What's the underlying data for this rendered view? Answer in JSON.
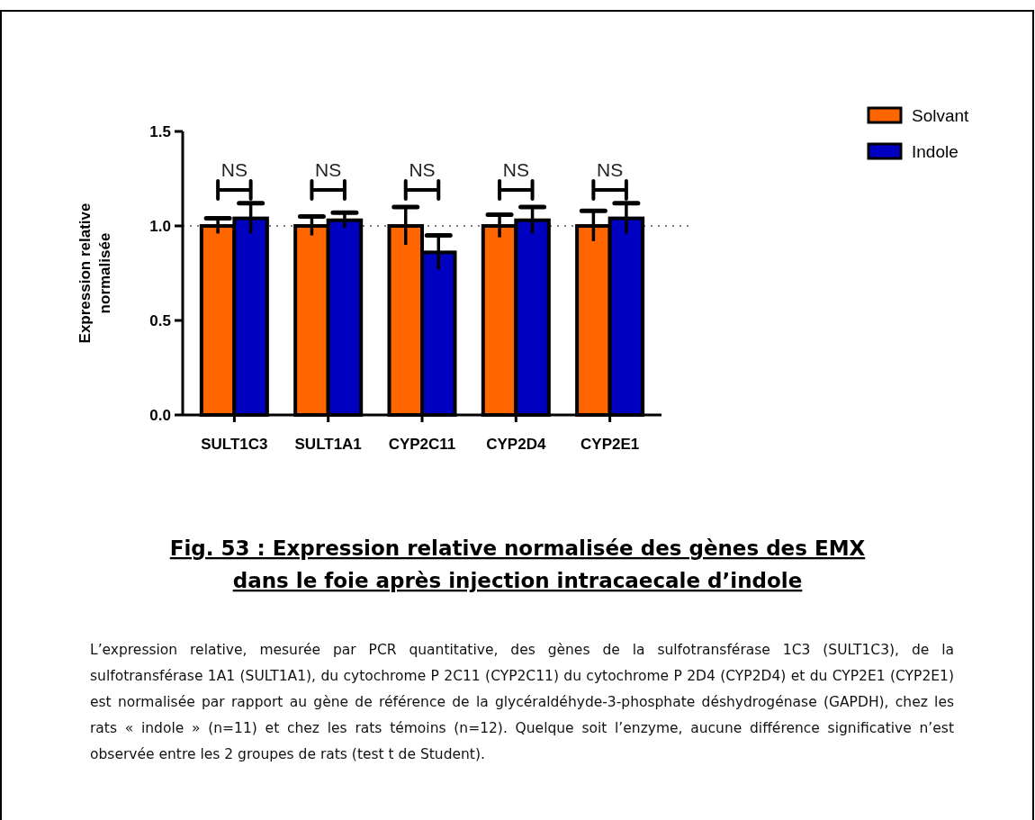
{
  "chart_data": {
    "type": "bar",
    "title": "Fig. 53 : Expression relative normalisée des gènes des EMX\ndans le foie après injection intracaecale d’indole",
    "ylabel": "Expression relative\nnormalisée",
    "categories": [
      "SULT1C3",
      "SULT1A1",
      "CYP2C11",
      "CYP2D4",
      "CYP2E1"
    ],
    "series": [
      {
        "name": "Solvant",
        "color": "#ff6600",
        "values": [
          1.0,
          1.0,
          1.0,
          1.0,
          1.0
        ],
        "errors": [
          0.04,
          0.05,
          0.1,
          0.06,
          0.08
        ]
      },
      {
        "name": "Indole",
        "color": "#0000c0",
        "values": [
          1.04,
          1.03,
          0.86,
          1.03,
          1.04
        ],
        "errors": [
          0.08,
          0.04,
          0.09,
          0.07,
          0.08
        ]
      }
    ],
    "ylim": [
      0,
      1.5
    ],
    "yticks": [
      {
        "value": 0,
        "label": "0.0"
      },
      {
        "value": 0.5,
        "label": "0.5"
      },
      {
        "value": 1,
        "label": "1.0"
      },
      {
        "value": 1.5,
        "label": "1.5"
      }
    ],
    "ref_lines": [
      {
        "axis": "y",
        "value": 1,
        "line_style": "dotted",
        "color": "#555555"
      }
    ],
    "legend": "top right",
    "annotations": [
      "NS",
      "NS",
      "NS",
      "NS",
      "NS",
      "L’expression relative, mesurée par PCR quantitative, des gènes de la sulfotransférase 1C3 (SULT1C3), de la sulfotransférase 1A1 (SULT1A1), du cytochrome P 2C11 (CYP2C11) du cytochrome P 2D4 (CYP2D4) et du CYP2E1 (CYP2E1) est normalisée par rapport au gène de référence de la glycéraldéhyde-3-phosphate déshydrogénase (GAPDH), chez les rats « indole » (n=11) et chez les rats témoins (n=12). Quelque soit l’enzyme, aucune différence significative n’est observée entre les 2 groupes de rats (test t de Student)."
    ]
  }
}
